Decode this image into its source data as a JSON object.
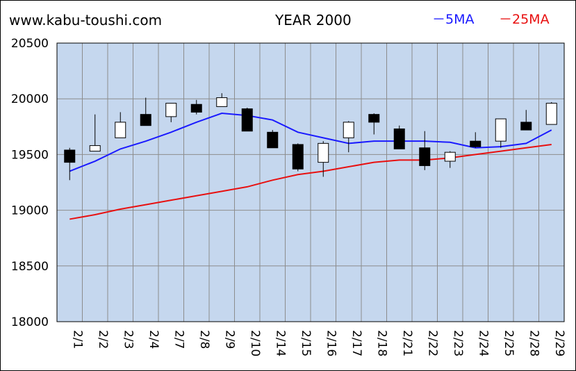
{
  "header": {
    "site": "www.kabu-toushi.com",
    "title": "YEAR 2000"
  },
  "legend": [
    {
      "label": "－5MA",
      "color": "#1a1aff"
    },
    {
      "label": "－25MA",
      "color": "#e81010"
    }
  ],
  "colors": {
    "plot_bg": "#c5d7ee",
    "grid": "#8c8c8c",
    "up_body": "#ffffff",
    "down_body": "#000000",
    "ma5": "#1a1aff",
    "ma25": "#e81010"
  },
  "chart_data": {
    "type": "candlestick",
    "title": "YEAR 2000",
    "ylim": [
      18000,
      20500
    ],
    "yticks": [
      "18000",
      "18500",
      "19000",
      "19500",
      "20000",
      "20500"
    ],
    "grid": true,
    "legend_position": "top-right",
    "categories": [
      "2/1",
      "2/2",
      "2/3",
      "2/4",
      "2/7",
      "2/8",
      "2/9",
      "2/10",
      "2/14",
      "2/15",
      "2/16",
      "2/17",
      "2/18",
      "2/21",
      "2/22",
      "2/23",
      "2/24",
      "2/25",
      "2/28",
      "2/29"
    ],
    "candles": [
      {
        "open": 19540,
        "close": 19430,
        "high": 19560,
        "low": 19270
      },
      {
        "open": 19530,
        "close": 19580,
        "high": 19860,
        "low": 19530
      },
      {
        "open": 19650,
        "close": 19790,
        "high": 19880,
        "low": 19650
      },
      {
        "open": 19860,
        "close": 19760,
        "high": 20010,
        "low": 19760
      },
      {
        "open": 19840,
        "close": 19960,
        "high": 19960,
        "low": 19790
      },
      {
        "open": 19950,
        "close": 19880,
        "high": 19990,
        "low": 19860
      },
      {
        "open": 19930,
        "close": 20010,
        "high": 20050,
        "low": 19930
      },
      {
        "open": 19910,
        "close": 19710,
        "high": 19920,
        "low": 19710
      },
      {
        "open": 19700,
        "close": 19560,
        "high": 19720,
        "low": 19560
      },
      {
        "open": 19590,
        "close": 19370,
        "high": 19600,
        "low": 19350
      },
      {
        "open": 19430,
        "close": 19600,
        "high": 19620,
        "low": 19300
      },
      {
        "open": 19650,
        "close": 19790,
        "high": 19800,
        "low": 19520
      },
      {
        "open": 19860,
        "close": 19790,
        "high": 19870,
        "low": 19680
      },
      {
        "open": 19730,
        "close": 19550,
        "high": 19760,
        "low": 19550
      },
      {
        "open": 19560,
        "close": 19400,
        "high": 19710,
        "low": 19360
      },
      {
        "open": 19440,
        "close": 19520,
        "high": 19530,
        "low": 19380
      },
      {
        "open": 19620,
        "close": 19570,
        "high": 19700,
        "low": 19560
      },
      {
        "open": 19620,
        "close": 19820,
        "high": 19820,
        "low": 19560
      },
      {
        "open": 19790,
        "close": 19720,
        "high": 19900,
        "low": 19720
      },
      {
        "open": 19770,
        "close": 19960,
        "high": 19970,
        "low": 19770
      }
    ],
    "series": [
      {
        "name": "5MA",
        "values": [
          19350,
          19440,
          19550,
          19620,
          19700,
          19790,
          19870,
          19850,
          19810,
          19700,
          19650,
          19600,
          19620,
          19620,
          19620,
          19610,
          19560,
          19570,
          19600,
          19720
        ]
      },
      {
        "name": "25MA",
        "values": [
          18920,
          18960,
          19010,
          19050,
          19090,
          19130,
          19170,
          19210,
          19270,
          19320,
          19350,
          19390,
          19430,
          19450,
          19450,
          19470,
          19500,
          19530,
          19560,
          19590
        ]
      }
    ]
  }
}
